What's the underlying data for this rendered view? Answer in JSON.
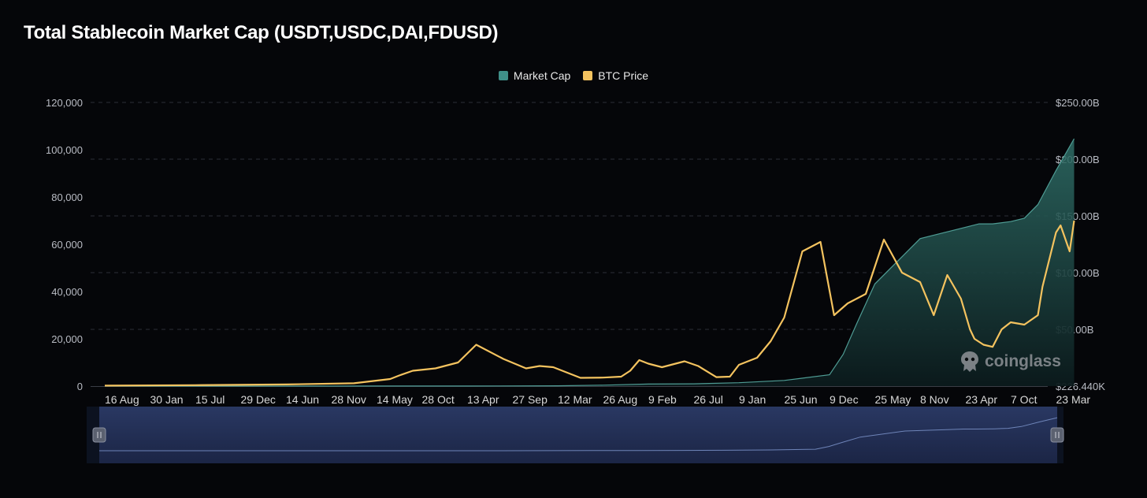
{
  "chart_data": {
    "type": "line",
    "title": "Total Stablecoin Market Cap (USDT,USDC,DAI,FDUSD)",
    "legend_placement": "top-center",
    "grid": true,
    "colors": {
      "market_cap": "#3f8f88",
      "btc_price": "#f4c35f",
      "background": "#050609"
    },
    "categories": [
      "16 Aug",
      "30 Jan",
      "15 Jul",
      "29 Dec",
      "14 Jun",
      "28 Nov",
      "14 May",
      "28 Oct",
      "13 Apr",
      "27 Sep",
      "12 Mar",
      "26 Aug",
      "9 Feb",
      "26 Jul",
      "9 Jan",
      "25 Jun",
      "9 Dec",
      "25 May",
      "8 Nov",
      "23 Apr",
      "7 Oct",
      "23 Mar"
    ],
    "y_left": {
      "ticks": [
        "120,000",
        "100,000",
        "80,000",
        "60,000",
        "40,000",
        "20,000",
        "0"
      ],
      "range": [
        0,
        120000
      ]
    },
    "y_right": {
      "ticks": [
        "$250.00B",
        "$200.00B",
        "$150.00B",
        "$100.00B",
        "$50.00B",
        "$226.440K"
      ],
      "range": [
        0.000226,
        250
      ]
    },
    "series": [
      {
        "name": "Market Cap",
        "axis": "right",
        "unit": "B",
        "x": [
          0,
          2,
          4,
          6,
          8,
          10,
          11,
          12,
          13,
          14,
          15,
          16,
          16.3,
          16.6,
          17,
          18,
          19,
          19.3,
          19.6,
          20,
          20.3,
          20.6,
          21,
          21.4
        ],
        "values": [
          0.001,
          0.01,
          0.02,
          0.05,
          0.1,
          0.3,
          0.8,
          1.8,
          2,
          3,
          5,
          10,
          28,
          55,
          90,
          130,
          140,
          143,
          143,
          145,
          148,
          160,
          190,
          218
        ]
      },
      {
        "name": "BTC Price",
        "axis": "left",
        "unit": "USD",
        "x": [
          0,
          2,
          4,
          5.5,
          6.3,
          6.5,
          6.8,
          7.3,
          7.8,
          8.2,
          8.8,
          9.3,
          9.6,
          9.9,
          10.5,
          11.0,
          11.4,
          11.6,
          11.8,
          12.0,
          12.3,
          12.5,
          12.8,
          13.1,
          13.5,
          13.8,
          14.0,
          14.4,
          14.7,
          15.0,
          15.4,
          15.8,
          16.1,
          16.4,
          16.8,
          17.2,
          17.6,
          18.0,
          18.3,
          18.6,
          18.9,
          19.1,
          19.2,
          19.4,
          19.6,
          19.8,
          20.0,
          20.3,
          20.6,
          20.7,
          21.0,
          21.1,
          21.3,
          21.4
        ],
        "values": [
          200,
          400,
          700,
          1200,
          3000,
          4500,
          6500,
          7500,
          10000,
          17500,
          11500,
          7500,
          8500,
          8000,
          3500,
          3600,
          4000,
          6500,
          11000,
          9500,
          8000,
          9000,
          10500,
          8500,
          3800,
          4000,
          9000,
          12000,
          19000,
          29000,
          57000,
          61000,
          30000,
          35000,
          39000,
          62000,
          48000,
          44000,
          30000,
          47000,
          37000,
          24000,
          20000,
          17500,
          16600,
          24000,
          27000,
          26000,
          30000,
          42000,
          65000,
          68000,
          57000,
          70000
        ]
      }
    ]
  },
  "slider": {
    "left_handle": "||",
    "right_handle": "||"
  },
  "watermark": {
    "text": "coinglass",
    "icon": "coinglass-logo-icon"
  }
}
